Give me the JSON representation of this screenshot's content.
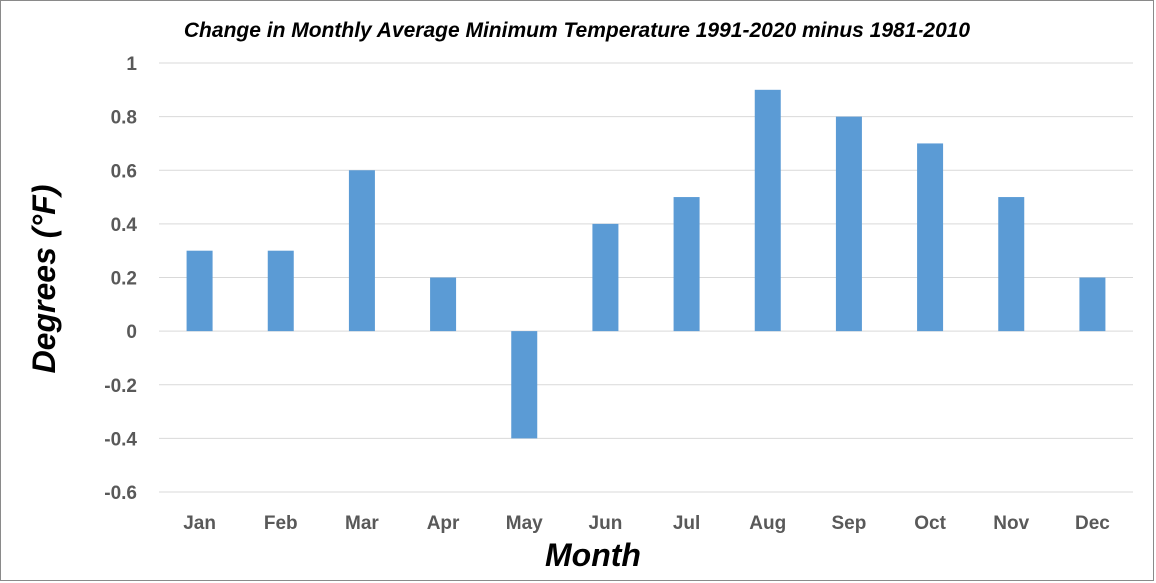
{
  "chart_data": {
    "type": "bar",
    "title": "Change in Monthly Average Minimum Temperature 1991-2020 minus 1981-2010",
    "xlabel": "Month",
    "ylabel": "Degrees (°F)",
    "categories": [
      "Jan",
      "Feb",
      "Mar",
      "Apr",
      "May",
      "Jun",
      "Jul",
      "Aug",
      "Sep",
      "Oct",
      "Nov",
      "Dec"
    ],
    "values": [
      0.3,
      0.3,
      0.6,
      0.2,
      -0.4,
      0.4,
      0.5,
      0.9,
      0.8,
      0.7,
      0.5,
      0.2
    ],
    "ylim": [
      -0.6,
      1
    ],
    "yticks": [
      1,
      0.8,
      0.6,
      0.4,
      0.2,
      0,
      -0.2,
      -0.4,
      -0.6
    ],
    "ytick_labels": [
      "1",
      "0.8",
      "0.6",
      "0.4",
      "0.2",
      "0",
      "-0.2",
      "-0.4",
      "-0.6"
    ],
    "grid": true,
    "legend": "none",
    "bar_color": "#5b9bd5"
  }
}
